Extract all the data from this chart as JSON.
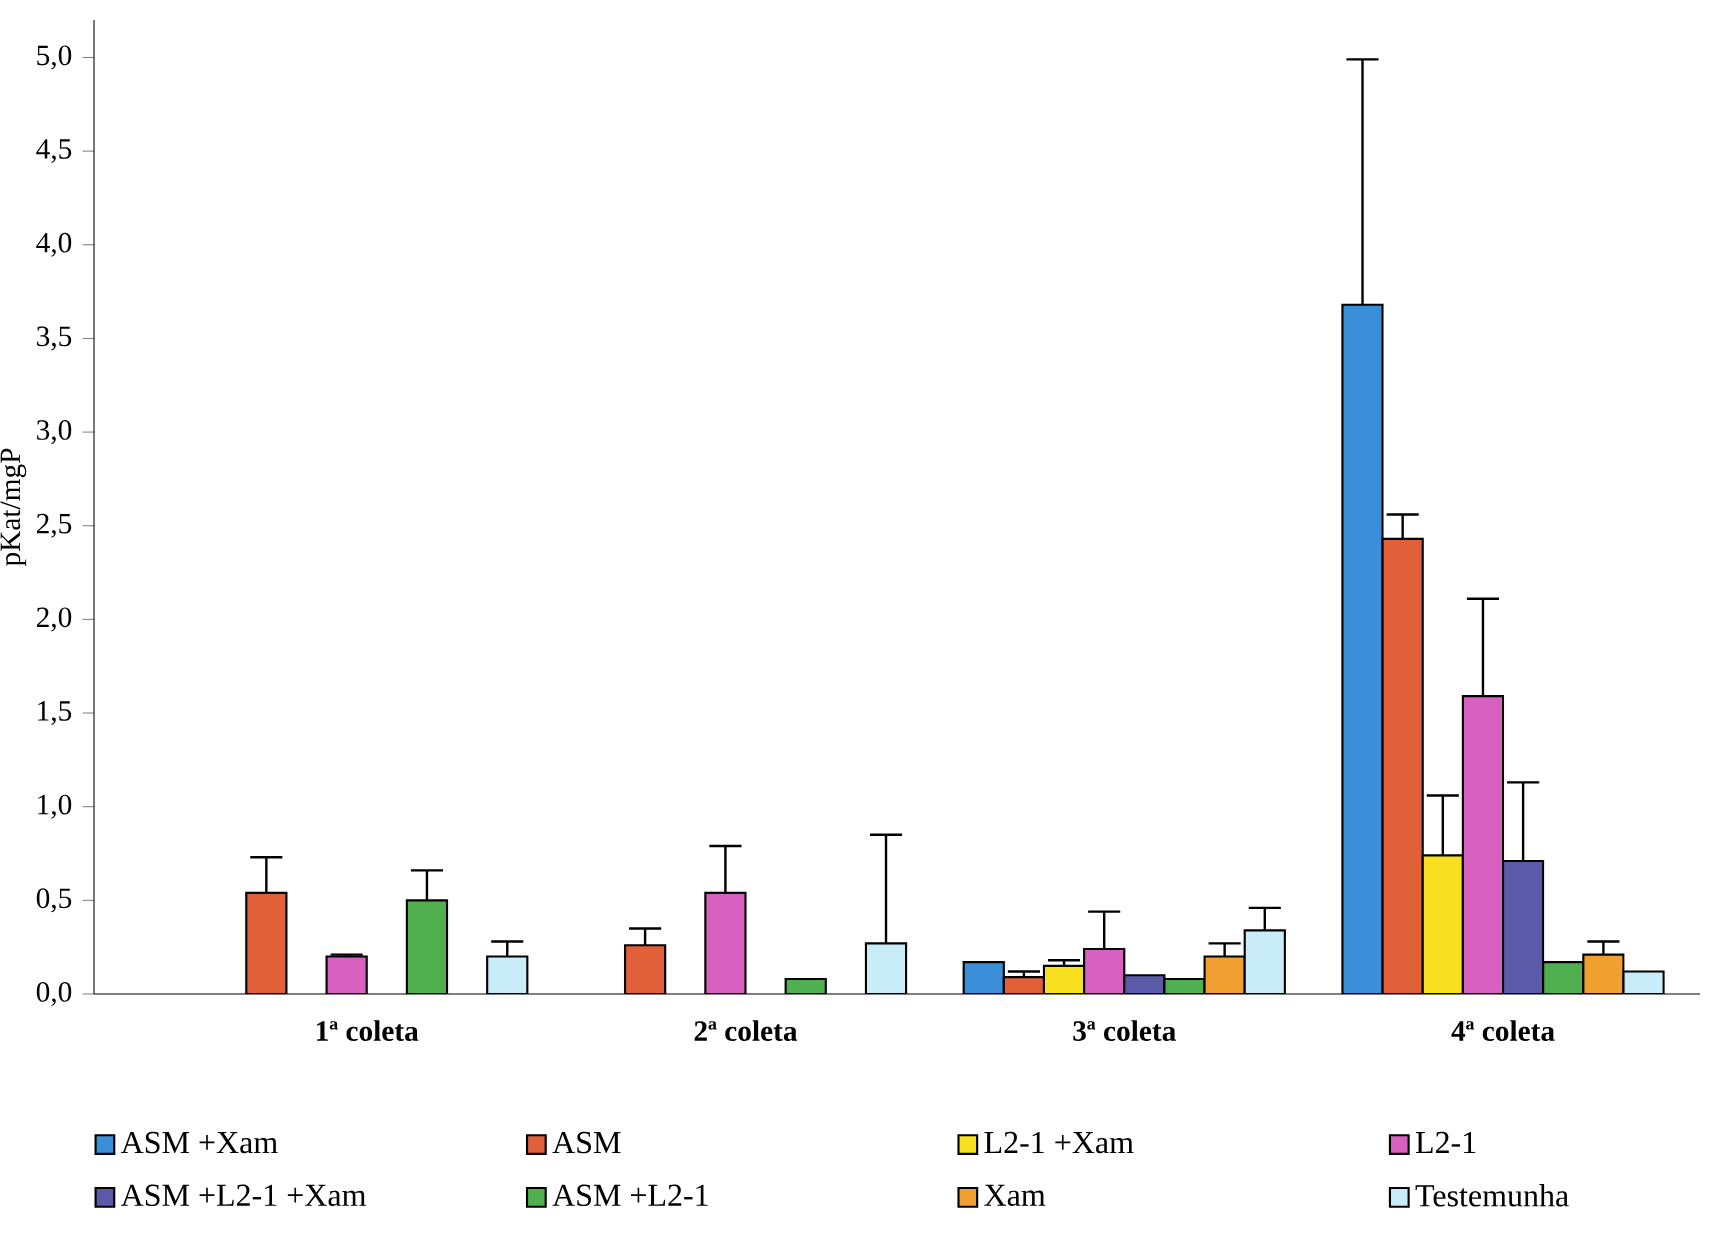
{
  "chart_data": {
    "type": "bar",
    "ylabel": "pKat/mgP",
    "categories": [
      "1ª coleta",
      "2ª coleta",
      "3ª coleta",
      "4ª coleta"
    ],
    "series": [
      {
        "name": "ASM +Xam",
        "color": "#3a8fd8",
        "values": [
          null,
          null,
          0.17,
          3.68
        ],
        "errors": [
          null,
          null,
          null,
          1.31
        ]
      },
      {
        "name": "ASM",
        "color": "#e0603a",
        "values": [
          0.54,
          0.26,
          0.09,
          2.43
        ],
        "errors": [
          0.19,
          0.09,
          0.03,
          0.13
        ]
      },
      {
        "name": "L2-1 +Xam",
        "color": "#f8e020",
        "values": [
          null,
          null,
          0.15,
          0.74
        ],
        "errors": [
          null,
          null,
          0.03,
          0.32
        ]
      },
      {
        "name": "L2-1",
        "color": "#d860c0",
        "values": [
          0.2,
          0.54,
          0.24,
          1.59
        ],
        "errors": [
          0.01,
          0.25,
          0.2,
          0.52
        ]
      },
      {
        "name": "ASM +L2-1 +Xam",
        "color": "#5a5aa8",
        "values": [
          null,
          null,
          0.1,
          0.71
        ],
        "errors": [
          null,
          null,
          null,
          0.42
        ]
      },
      {
        "name": "ASM +L2-1",
        "color": "#50b050",
        "values": [
          0.5,
          0.08,
          0.08,
          0.17
        ],
        "errors": [
          0.16,
          null,
          null,
          null
        ]
      },
      {
        "name": "Xam",
        "color": "#f0a030",
        "values": [
          null,
          null,
          0.2,
          0.21
        ],
        "errors": [
          null,
          null,
          0.07,
          0.07
        ]
      },
      {
        "name": "Testemunha",
        "color": "#c8ecf8",
        "values": [
          0.2,
          0.27,
          0.34,
          0.12
        ],
        "errors": [
          0.08,
          0.58,
          0.12,
          null
        ]
      }
    ],
    "ylim": [
      0,
      5.2
    ],
    "yticks": [
      {
        "value": 0,
        "label": "0,0"
      },
      {
        "value": 0.5,
        "label": "0,5"
      },
      {
        "value": 1,
        "label": "1,0"
      },
      {
        "value": 1.5,
        "label": "1,5"
      },
      {
        "value": 2,
        "label": "2,0"
      },
      {
        "value": 2.5,
        "label": "2,5"
      },
      {
        "value": 3,
        "label": "3,0"
      },
      {
        "value": 3.5,
        "label": "3,5"
      },
      {
        "value": 4,
        "label": "4,0"
      },
      {
        "value": 4.5,
        "label": "4,5"
      },
      {
        "value": 5,
        "label": "5,0"
      }
    ],
    "legend": "bottom"
  }
}
